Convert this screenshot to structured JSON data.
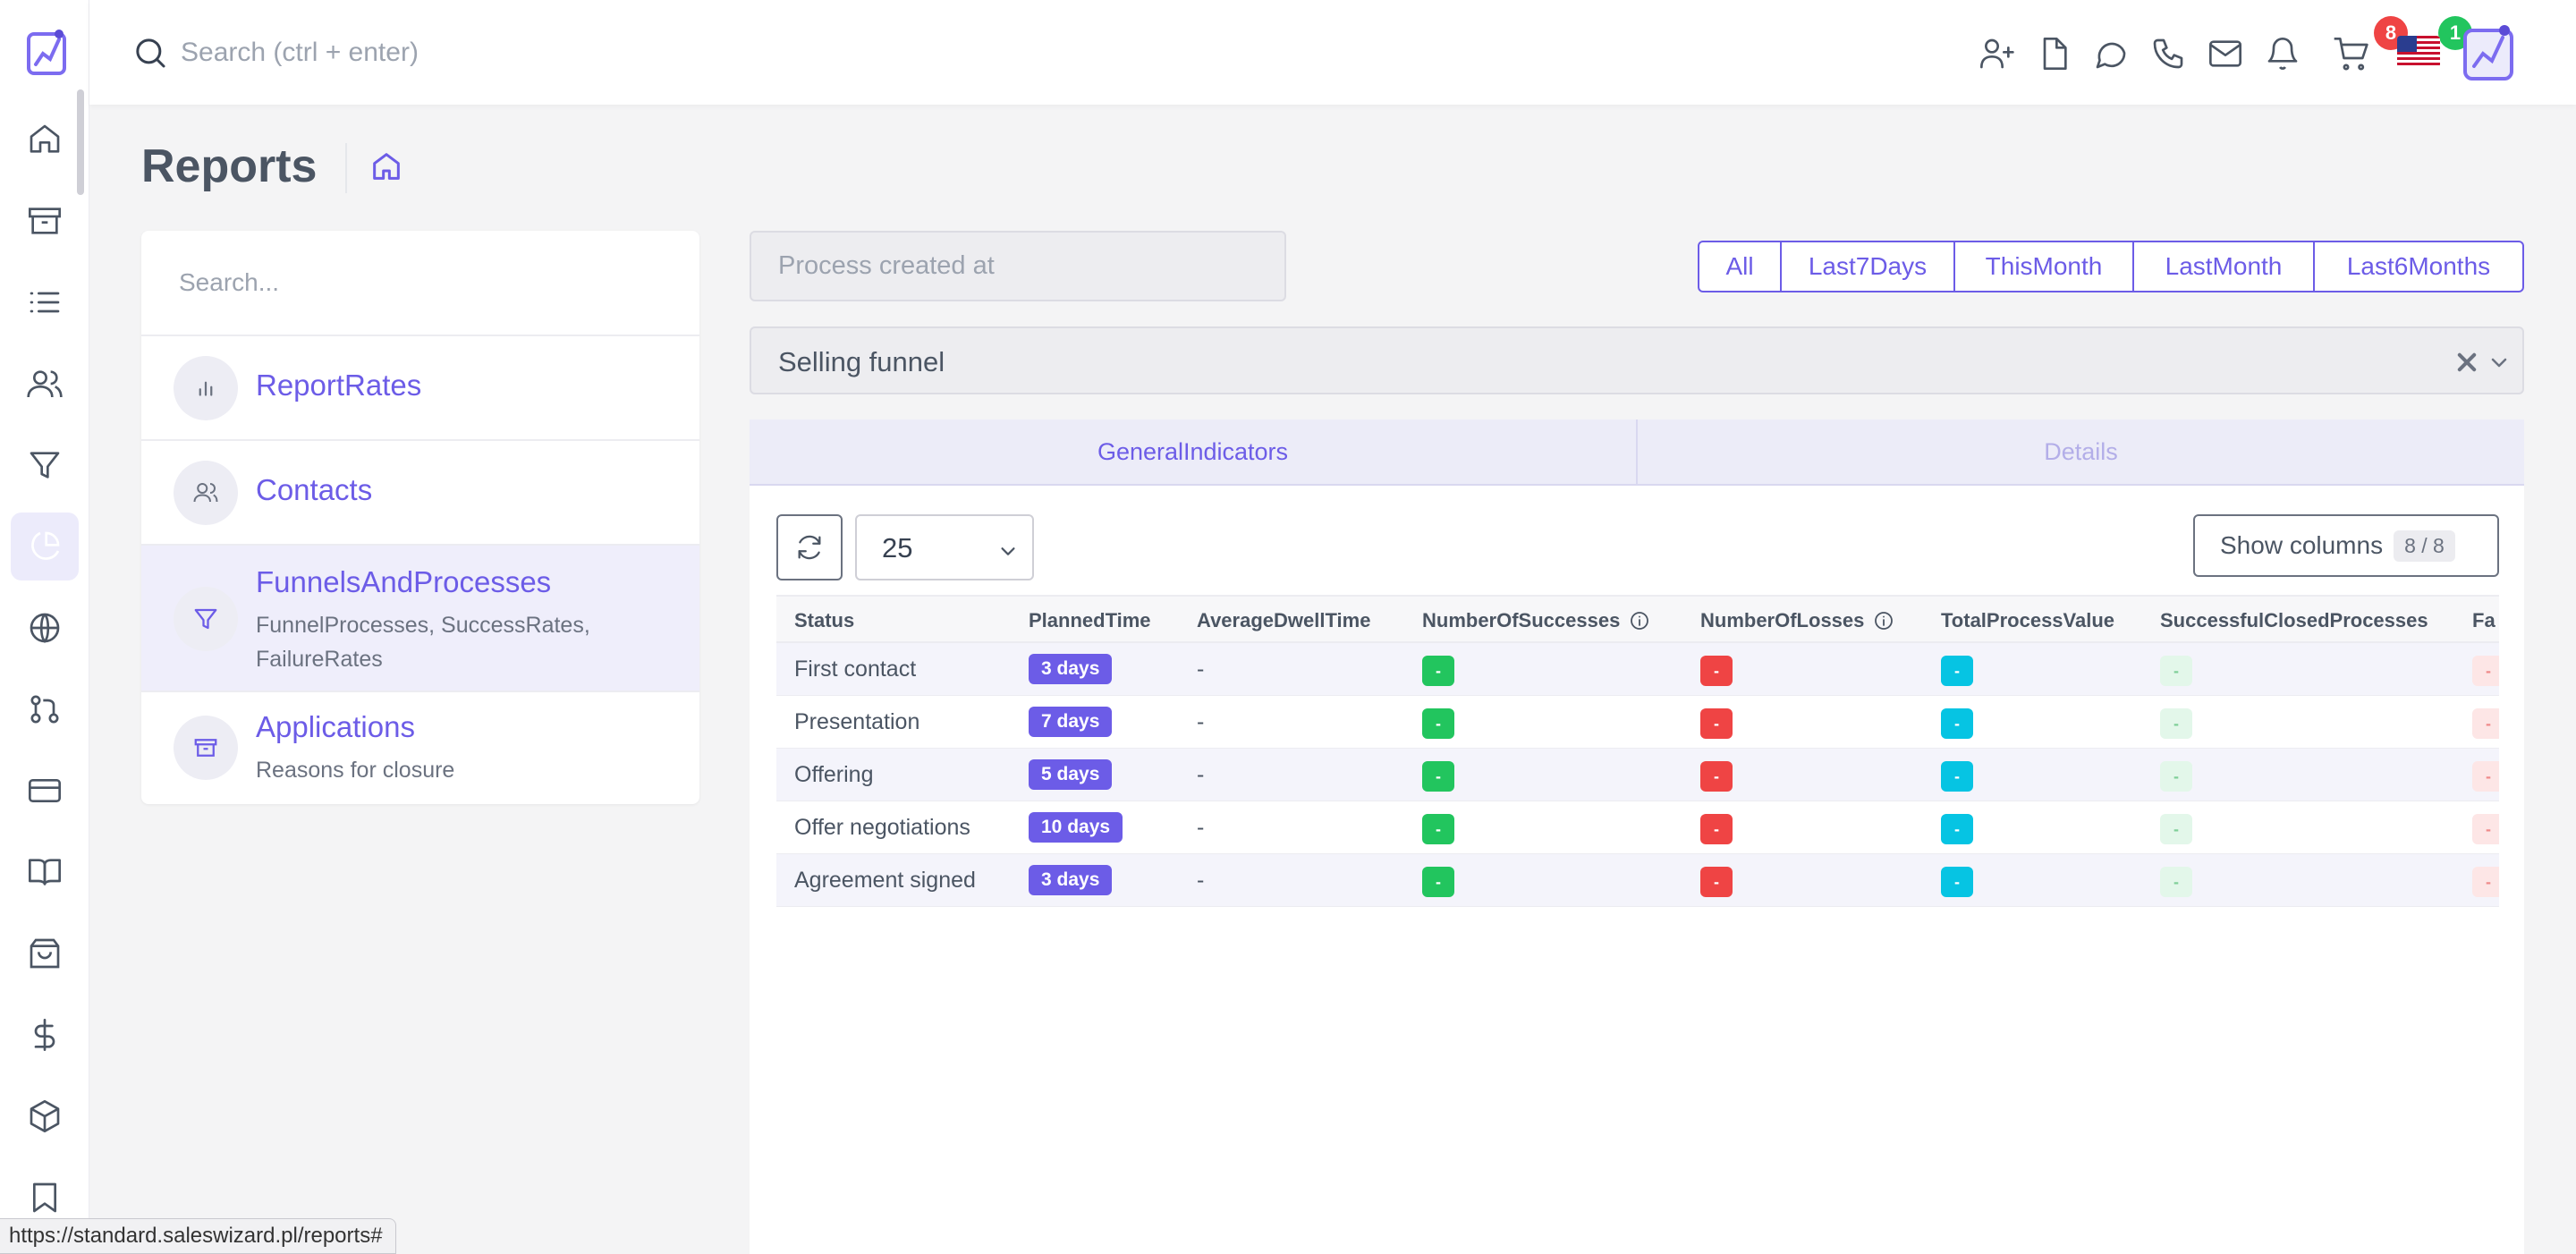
{
  "colors": {
    "accent": "#6c5ce7",
    "success": "#22c55e",
    "danger": "#ef4444",
    "info": "#06c4e3"
  },
  "sidebar": {
    "items": [
      {
        "icon": "home-icon"
      },
      {
        "icon": "archive-icon"
      },
      {
        "icon": "list-icon"
      },
      {
        "icon": "users-icon"
      },
      {
        "icon": "filter-icon"
      },
      {
        "icon": "pie-chart-icon",
        "active": true
      },
      {
        "icon": "globe-icon"
      },
      {
        "icon": "git-pull-request-icon"
      },
      {
        "icon": "credit-card-icon"
      },
      {
        "icon": "book-open-icon"
      },
      {
        "icon": "shopping-bag-icon"
      },
      {
        "icon": "dollar-icon"
      },
      {
        "icon": "box-icon"
      },
      {
        "icon": "bookmark-icon"
      }
    ]
  },
  "topbar": {
    "search_placeholder": "Search (ctrl + enter)",
    "notifications_count": "8",
    "cart_count": "1"
  },
  "page": {
    "title": "Reports"
  },
  "report_list": {
    "search_placeholder": "Search...",
    "items": [
      {
        "title": "ReportRates",
        "subtitle": "",
        "icon": "bar-chart-icon"
      },
      {
        "title": "Contacts",
        "subtitle": "",
        "icon": "users-icon"
      },
      {
        "title": "FunnelsAndProcesses",
        "subtitle": "FunnelProcesses, SuccessRates, FailureRates",
        "icon": "filter-icon",
        "active": true
      },
      {
        "title": "Applications",
        "subtitle": "Reasons for closure",
        "icon": "archive-icon"
      }
    ]
  },
  "filters": {
    "date_placeholder": "Process created at",
    "ranges": [
      "All",
      "Last7Days",
      "ThisMonth",
      "LastMonth",
      "Last6Months"
    ],
    "funnel_value": "Selling funnel"
  },
  "tabs": [
    "GeneralIndicators",
    "Details"
  ],
  "toolbar": {
    "page_size": "25",
    "show_columns_label": "Show columns",
    "columns_count": "8 / 8"
  },
  "table": {
    "columns": [
      "Status",
      "PlannedTime",
      "AverageDwellTime",
      "NumberOfSuccesses",
      "NumberOfLosses",
      "TotalProcessValue",
      "SuccessfulClosedProcesses",
      "Fa"
    ],
    "rows": [
      {
        "status": "First contact",
        "planned": "3 days",
        "dwell": "-",
        "successes": "-",
        "losses": "-",
        "value": "-",
        "closed": "-",
        "failed": "-"
      },
      {
        "status": "Presentation",
        "planned": "7 days",
        "dwell": "-",
        "successes": "-",
        "losses": "-",
        "value": "-",
        "closed": "-",
        "failed": "-"
      },
      {
        "status": "Offering",
        "planned": "5 days",
        "dwell": "-",
        "successes": "-",
        "losses": "-",
        "value": "-",
        "closed": "-",
        "failed": "-"
      },
      {
        "status": "Offer negotiations",
        "planned": "10 days",
        "dwell": "-",
        "successes": "-",
        "losses": "-",
        "value": "-",
        "closed": "-",
        "failed": "-"
      },
      {
        "status": "Agreement signed",
        "planned": "3 days",
        "dwell": "-",
        "successes": "-",
        "losses": "-",
        "value": "-",
        "closed": "-",
        "failed": "-"
      }
    ]
  },
  "statusbar": {
    "url": "https://standard.saleswizard.pl/reports#"
  }
}
